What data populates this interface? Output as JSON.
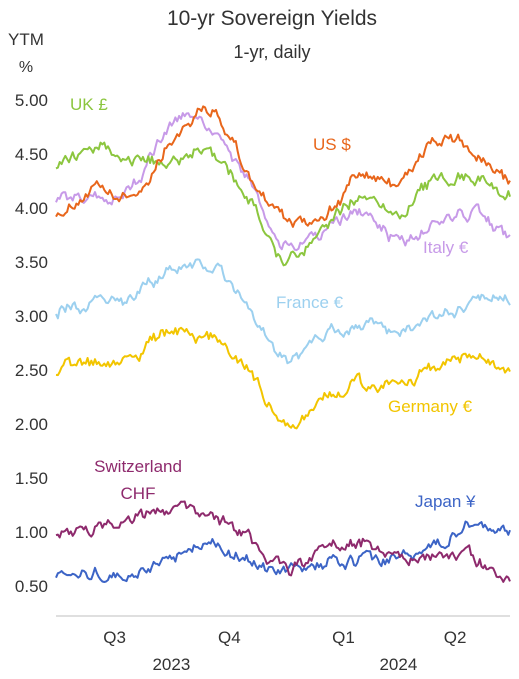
{
  "chart_data": {
    "type": "line",
    "title": "10-yr Sovereign Yields",
    "subtitle": "1-yr, daily",
    "ylabel": "YTM",
    "yunit": "%",
    "ylim": [
      0.5,
      5.0
    ],
    "yticks": [
      "0.50",
      "1.00",
      "1.50",
      "2.00",
      "2.50",
      "3.00",
      "3.50",
      "4.00",
      "4.50",
      "5.00"
    ],
    "grid": false,
    "x_quarters": [
      "Q3",
      "Q4",
      "Q1",
      "Q2"
    ],
    "x_years": [
      "2023",
      "2024"
    ],
    "x_dates": [
      "2023-06-30",
      "2023-07-31",
      "2023-08-31",
      "2023-09-30",
      "2023-10-31",
      "2023-11-30",
      "2023-12-31",
      "2024-01-31",
      "2024-02-29",
      "2024-03-31",
      "2024-04-30",
      "2024-05-31",
      "2024-06-28"
    ],
    "series": [
      {
        "name": "US $",
        "color": "#e8661b",
        "values": [
          3.97,
          4.15,
          4.1,
          4.62,
          4.92,
          4.35,
          3.88,
          3.95,
          4.28,
          4.25,
          4.62,
          4.5,
          4.22
        ]
      },
      {
        "name": "UK £",
        "color": "#8cc63f",
        "values": [
          4.4,
          4.55,
          4.45,
          4.45,
          4.48,
          4.12,
          3.54,
          3.82,
          4.12,
          3.95,
          4.25,
          4.3,
          4.1
        ]
      },
      {
        "name": "Italy €",
        "color": "#c79ae8",
        "values": [
          4.1,
          4.1,
          4.2,
          4.8,
          4.72,
          4.28,
          3.65,
          3.8,
          3.95,
          3.7,
          3.88,
          3.95,
          3.75
        ]
      },
      {
        "name": "France €",
        "color": "#9cd0ef",
        "values": [
          3.05,
          3.1,
          3.2,
          3.4,
          3.45,
          3.1,
          2.6,
          2.8,
          2.9,
          2.85,
          3.0,
          3.15,
          3.15
        ]
      },
      {
        "name": "Germany €",
        "color": "#f2c500",
        "values": [
          2.5,
          2.55,
          2.6,
          2.85,
          2.8,
          2.5,
          2.0,
          2.25,
          2.35,
          2.35,
          2.5,
          2.6,
          2.45
        ]
      },
      {
        "name": "Switzerland CHF",
        "color": "#8e2a6d",
        "values": [
          1.0,
          1.02,
          1.1,
          1.18,
          1.15,
          0.95,
          0.65,
          0.85,
          0.9,
          0.75,
          0.8,
          0.75,
          0.55
        ]
      },
      {
        "name": "Japan ¥",
        "color": "#3c64c6",
        "values": [
          0.62,
          0.6,
          0.65,
          0.75,
          0.92,
          0.72,
          0.64,
          0.7,
          0.73,
          0.74,
          0.88,
          1.05,
          1.05
        ]
      }
    ]
  },
  "labels": {
    "us": "US $",
    "uk": "UK £",
    "italy": "Italy €",
    "france": "France €",
    "germany": "Germany €",
    "switzerland_1": "Switzerland",
    "switzerland_2": "CHF",
    "japan": "Japan ¥"
  }
}
